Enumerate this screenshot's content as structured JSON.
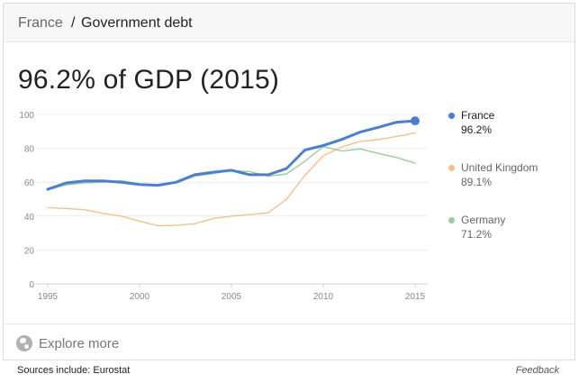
{
  "breadcrumb": {
    "parent": "France",
    "separator": "/",
    "current": "Government debt"
  },
  "headline": "96.2% of GDP (2015)",
  "chart_data": {
    "type": "line",
    "x": [
      1995,
      1996,
      1997,
      1998,
      1999,
      2000,
      2001,
      2002,
      2003,
      2004,
      2005,
      2006,
      2007,
      2008,
      2009,
      2010,
      2011,
      2012,
      2013,
      2014,
      2015
    ],
    "xticks": [
      1995,
      2000,
      2005,
      2010,
      2015
    ],
    "yticks": [
      0,
      20,
      40,
      60,
      80,
      100
    ],
    "xlim": [
      1995,
      2015
    ],
    "ylim": [
      0,
      100
    ],
    "grid": true,
    "legend_position": "right",
    "series": [
      {
        "name": "France",
        "value_label": "96.2%",
        "color": "#4a7fcf",
        "emphasis": true,
        "values": [
          55.8,
          59.6,
          60.8,
          60.8,
          60.0,
          58.6,
          58.2,
          60.0,
          64.4,
          65.9,
          67.1,
          64.4,
          64.4,
          68.1,
          79.0,
          81.7,
          85.2,
          89.6,
          92.4,
          95.4,
          96.2
        ]
      },
      {
        "name": "United Kingdom",
        "value_label": "89.1%",
        "color": "#f2c08f",
        "emphasis": false,
        "values": [
          45.0,
          44.5,
          43.8,
          41.6,
          40.0,
          37.0,
          34.3,
          34.5,
          35.5,
          38.5,
          40.0,
          40.9,
          41.9,
          49.9,
          64.1,
          75.6,
          80.8,
          84.1,
          85.2,
          87.0,
          89.1
        ]
      },
      {
        "name": "Germany",
        "value_label": "71.2%",
        "color": "#9ccd9a",
        "emphasis": false,
        "values": [
          55.6,
          58.4,
          59.6,
          60.0,
          60.9,
          59.1,
          58.1,
          59.9,
          63.5,
          65.1,
          66.9,
          66.3,
          63.5,
          64.9,
          72.4,
          81.0,
          78.4,
          79.7,
          77.0,
          74.6,
          71.2
        ]
      }
    ]
  },
  "explore": {
    "icon": "globe-icon",
    "label": "Explore more"
  },
  "footer": {
    "sources": "Sources include: Eurostat",
    "feedback": "Feedback"
  }
}
